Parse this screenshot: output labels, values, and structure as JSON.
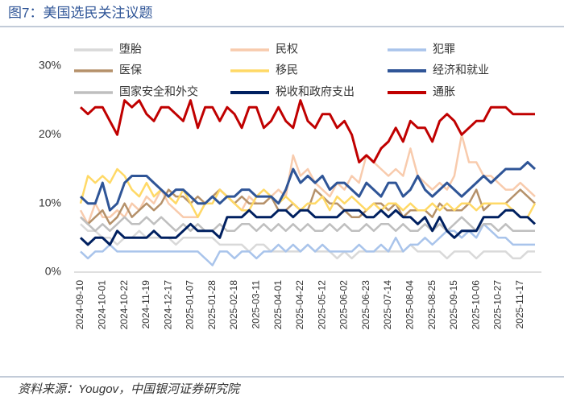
{
  "chart_data": {
    "type": "line",
    "title": "图7：美国选民关注议题",
    "source": "资料来源：Yougov，中国银河证券研究院",
    "categories": [
      "2024-09-10",
      null,
      null,
      "2024-10-01",
      null,
      null,
      "2024-10-22",
      null,
      null,
      "2024-11-19",
      null,
      null,
      "2024-12-17",
      null,
      null,
      "2025-01-07",
      null,
      null,
      "2025-01-28",
      null,
      null,
      "2025-02-18",
      null,
      null,
      "2025-03-11",
      null,
      null,
      "2025-04-01",
      null,
      null,
      "2025-04-22",
      null,
      null,
      "2025-05-12",
      null,
      null,
      "2025-06-02",
      null,
      null,
      "2025-06-23",
      null,
      null,
      "2025-07-14",
      null,
      null,
      "2025-08-04",
      null,
      null,
      "2025-08-25",
      null,
      null,
      "2025-09-15",
      null,
      null,
      "2025-10-06",
      null,
      null,
      "2025-10-27",
      null,
      null,
      "2025-11-17",
      null,
      null
    ],
    "ylim": [
      0,
      30
    ],
    "yticks": [
      {
        "value": 0,
        "label": "0%"
      },
      {
        "value": 10,
        "label": "10%"
      },
      {
        "value": 20,
        "label": "20%"
      },
      {
        "value": 30,
        "label": "30%"
      }
    ],
    "grid": false,
    "series": [
      {
        "name": "堕胎",
        "color": "#d9d9d9",
        "width": 2.5,
        "values": [
          7,
          6,
          6,
          5,
          5,
          4,
          5,
          5,
          6,
          5,
          5,
          5,
          5,
          4,
          5,
          5,
          5,
          5,
          5,
          4,
          4,
          4,
          4,
          3,
          4,
          4,
          3,
          3,
          3,
          3,
          3,
          4,
          3,
          3,
          3,
          2,
          3,
          2,
          3,
          3,
          3,
          3,
          3,
          3,
          3,
          4,
          3,
          3,
          3,
          3,
          2,
          3,
          3,
          3,
          2,
          3,
          3,
          3,
          3,
          2,
          2,
          3,
          3
        ]
      },
      {
        "name": "民权",
        "color": "#f8cbad",
        "width": 2.5,
        "values": [
          9,
          7,
          10,
          8,
          8,
          9,
          8,
          10,
          9,
          11,
          10,
          12,
          10,
          9,
          8,
          8,
          8,
          10,
          11,
          12,
          11,
          10,
          9,
          11,
          10,
          10,
          11,
          12,
          11,
          17,
          14,
          15,
          13,
          12,
          11,
          13,
          12,
          14,
          13,
          17,
          16,
          15,
          14,
          15,
          14,
          18,
          14,
          13,
          12,
          13,
          12,
          14,
          20,
          16,
          16,
          14,
          14,
          13,
          12,
          12,
          13,
          12,
          11
        ]
      },
      {
        "name": "犯罪",
        "color": "#a9c4eb",
        "width": 2.5,
        "values": [
          3,
          2,
          3,
          3,
          4,
          3,
          3,
          3,
          3,
          3,
          3,
          3,
          3,
          3,
          3,
          3,
          3,
          2,
          1,
          3,
          3,
          2,
          3,
          3,
          2,
          3,
          3,
          4,
          3,
          4,
          3,
          4,
          3,
          4,
          3,
          3,
          3,
          3,
          4,
          3,
          3,
          4,
          3,
          5,
          3,
          4,
          4,
          5,
          4,
          5,
          6,
          6,
          5,
          6,
          5,
          7,
          6,
          5,
          5,
          4,
          4,
          4,
          4
        ]
      },
      {
        "name": "医保",
        "color": "#b5916a",
        "width": 2.5,
        "values": [
          8,
          7,
          8,
          9,
          7,
          8,
          10,
          8,
          9,
          10,
          9,
          10,
          12,
          11,
          11,
          10,
          11,
          10,
          11,
          12,
          11,
          10,
          11,
          10,
          10,
          10,
          11,
          9,
          9,
          10,
          9,
          9,
          12,
          11,
          10,
          10,
          9,
          8,
          8,
          9,
          10,
          10,
          9,
          10,
          8,
          9,
          9,
          9,
          8,
          10,
          9,
          9,
          9,
          10,
          12,
          9,
          10,
          10,
          10,
          11,
          12,
          11,
          10
        ]
      },
      {
        "name": "移民",
        "color": "#ffd966",
        "width": 2.5,
        "values": [
          10,
          14,
          13,
          14,
          13,
          15,
          14,
          12,
          11,
          13,
          11,
          12,
          11,
          10,
          12,
          10,
          8,
          10,
          10,
          12,
          11,
          10,
          9,
          9,
          11,
          12,
          11,
          10,
          11,
          10,
          9,
          10,
          10,
          11,
          9,
          11,
          10,
          11,
          10,
          9,
          10,
          9,
          10,
          10,
          9,
          10,
          9,
          9,
          10,
          9,
          10,
          9,
          10,
          10,
          9,
          10,
          10,
          10,
          10,
          9,
          8,
          8,
          10
        ]
      },
      {
        "name": "经济和就业",
        "color": "#2f5597",
        "width": 3,
        "values": [
          11,
          10,
          10,
          13,
          9,
          10,
          13,
          14,
          14,
          14,
          13,
          12,
          11,
          12,
          12,
          11,
          10,
          10,
          11,
          10,
          11,
          11,
          12,
          12,
          11,
          11,
          11,
          10,
          12,
          15,
          13,
          14,
          13,
          14,
          12,
          13,
          13,
          12,
          11,
          13,
          12,
          11,
          13,
          13,
          11,
          12,
          14,
          12,
          11,
          12,
          13,
          12,
          11,
          12,
          13,
          14,
          13,
          14,
          15,
          15,
          15,
          16,
          15
        ]
      },
      {
        "name": "国家安全和外交",
        "color": "#bfbfbf",
        "width": 2.5,
        "values": [
          8,
          7,
          6,
          7,
          6,
          7,
          8,
          7,
          7,
          8,
          7,
          8,
          7,
          6,
          7,
          6,
          7,
          6,
          6,
          7,
          6,
          6,
          7,
          7,
          6,
          7,
          6,
          7,
          6,
          7,
          6,
          7,
          6,
          6,
          7,
          6,
          7,
          6,
          6,
          7,
          6,
          7,
          7,
          6,
          7,
          6,
          6,
          7,
          6,
          7,
          6,
          7,
          8,
          7,
          6,
          7,
          7,
          6,
          7,
          6,
          6,
          6,
          6
        ]
      },
      {
        "name": "税收和政府支出",
        "color": "#002060",
        "width": 3,
        "values": [
          5,
          4,
          5,
          5,
          4,
          6,
          5,
          5,
          5,
          5,
          6,
          5,
          5,
          5,
          6,
          7,
          6,
          6,
          6,
          5,
          8,
          8,
          8,
          9,
          8,
          8,
          8,
          9,
          9,
          8,
          9,
          9,
          8,
          8,
          8,
          8,
          9,
          9,
          9,
          8,
          8,
          9,
          8,
          9,
          8,
          8,
          7,
          8,
          6,
          8,
          6,
          5,
          6,
          6,
          6,
          8,
          8,
          8,
          9,
          9,
          8,
          8,
          7
        ]
      },
      {
        "name": "通胀",
        "color": "#c00000",
        "width": 3,
        "values": [
          24,
          23,
          24,
          24,
          22,
          20,
          25,
          24,
          25,
          23,
          22,
          24,
          24,
          23,
          22,
          25,
          21,
          24,
          24,
          22,
          24,
          23,
          21,
          24,
          24,
          21,
          22,
          24,
          22,
          21,
          25,
          22,
          21,
          23,
          23,
          21,
          22,
          20,
          16,
          17,
          16,
          18,
          19,
          21,
          19,
          22,
          21,
          21,
          19,
          22,
          23,
          22,
          20,
          21,
          22,
          22,
          24,
          24,
          24,
          23,
          23,
          23,
          23
        ]
      }
    ]
  }
}
